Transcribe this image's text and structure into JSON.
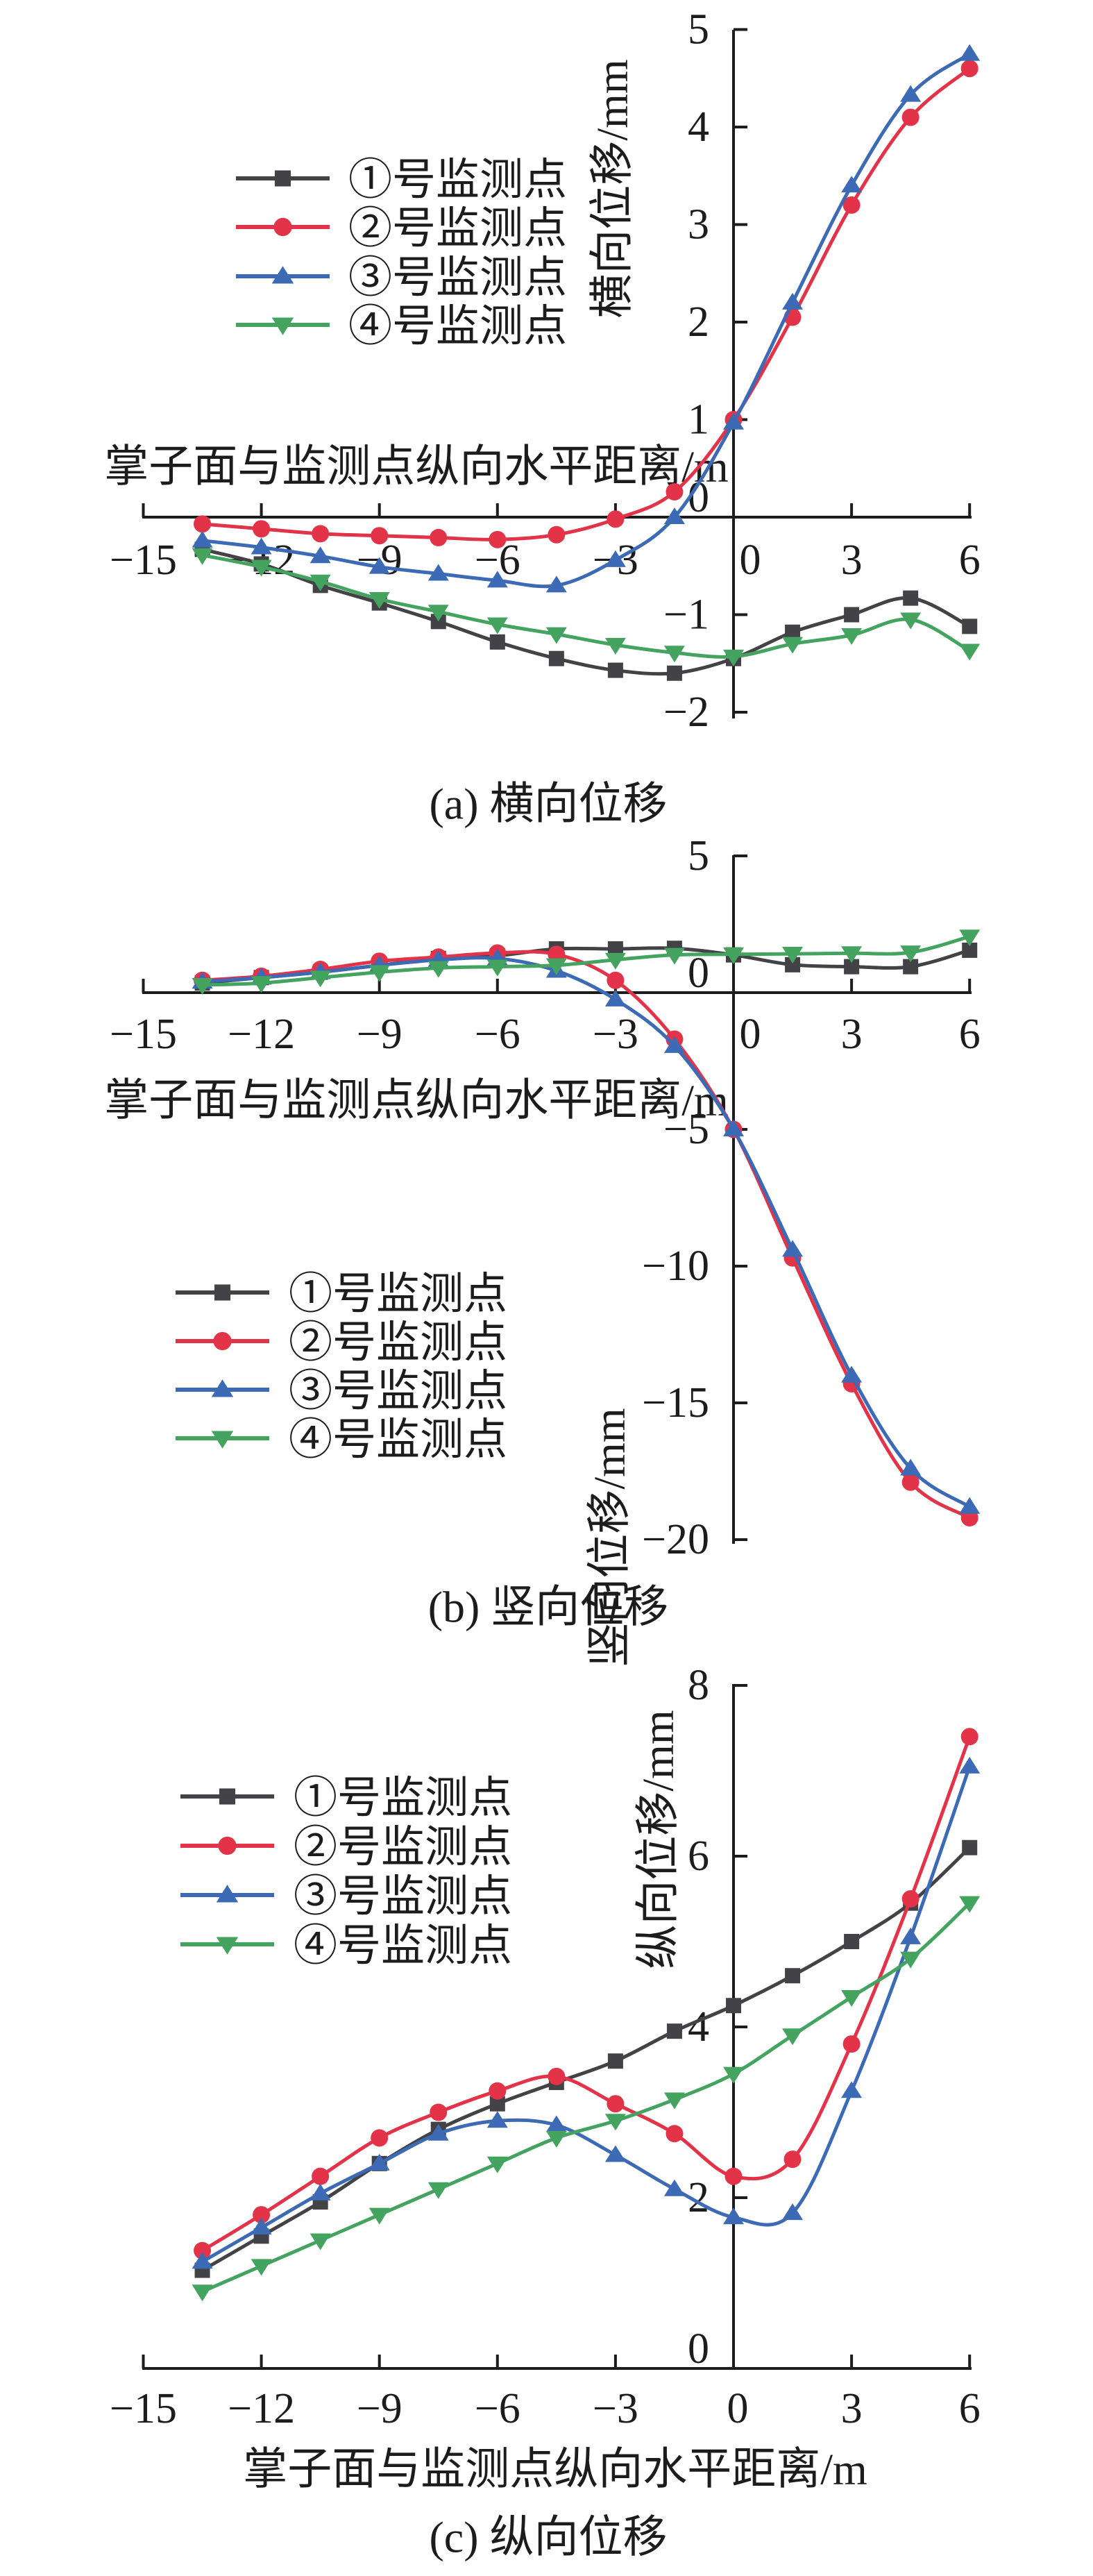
{
  "figure": {
    "background": "#ffffff",
    "x_axis_title": "掌子面与监测点纵向水平距离/m",
    "legend_labels": [
      "①号监测点",
      "②号监测点",
      "③号监测点",
      "④号监测点"
    ],
    "series_colors": {
      "p1": "#434347",
      "p2": "#e23348",
      "p3": "#3c6ab5",
      "p4": "#43a35f"
    }
  },
  "chart_data": [
    {
      "type": "line",
      "caption": "(a) 横向位移",
      "ylabel": "横向位移/mm",
      "xlabel": "掌子面与监测点纵向水平距离/m",
      "xlim": [
        -15,
        6
      ],
      "ylim": [
        -2,
        5
      ],
      "grid": false,
      "legend_position": "top-left",
      "x": [
        -13.5,
        -12,
        -10.5,
        -9,
        -7.5,
        -6,
        -4.5,
        -3,
        -1.5,
        0,
        1.5,
        3,
        4.5,
        6
      ],
      "xticks": [
        -15,
        -12,
        -9,
        -6,
        -3,
        0,
        3,
        6
      ],
      "xtick_labels": [
        "−15",
        "−12",
        "−9",
        "−6",
        "−3",
        "0",
        "3",
        "6"
      ],
      "yticks": [
        5,
        4,
        3,
        2,
        1,
        0,
        -1,
        -2
      ],
      "ytick_labels": [
        "5",
        "4",
        "3",
        "2",
        "1",
        "0",
        "−1",
        "−2"
      ],
      "series": [
        {
          "name": "①号监测点",
          "marker": "square",
          "color": "#434347",
          "values": [
            -0.33,
            -0.48,
            -0.7,
            -0.88,
            -1.07,
            -1.28,
            -1.45,
            -1.57,
            -1.6,
            -1.45,
            -1.18,
            -1.0,
            -0.83,
            -1.12
          ]
        },
        {
          "name": "②号监测点",
          "marker": "circle",
          "color": "#e23348",
          "values": [
            -0.07,
            -0.12,
            -0.17,
            -0.19,
            -0.21,
            -0.23,
            -0.18,
            -0.02,
            0.26,
            1.0,
            2.05,
            3.2,
            4.1,
            4.6
          ]
        },
        {
          "name": "③号监测点",
          "marker": "triangle-up",
          "color": "#3c6ab5",
          "values": [
            -0.24,
            -0.31,
            -0.4,
            -0.51,
            -0.58,
            -0.65,
            -0.7,
            -0.44,
            0.0,
            0.97,
            2.2,
            3.4,
            4.33,
            4.75
          ]
        },
        {
          "name": "④号监测点",
          "marker": "triangle-down",
          "color": "#43a35f",
          "values": [
            -0.39,
            -0.51,
            -0.66,
            -0.84,
            -0.97,
            -1.1,
            -1.2,
            -1.31,
            -1.39,
            -1.43,
            -1.3,
            -1.21,
            -1.05,
            -1.37
          ]
        }
      ]
    },
    {
      "type": "line",
      "caption": "(b) 竖向位移",
      "ylabel": "竖向位移/mm",
      "xlabel": "掌子面与监测点纵向水平距离/m",
      "xlim": [
        -15,
        6
      ],
      "ylim": [
        -20,
        5
      ],
      "grid": false,
      "legend_position": "middle-left",
      "x": [
        -13.5,
        -12,
        -10.5,
        -9,
        -7.5,
        -6,
        -4.5,
        -3,
        -1.5,
        0,
        1.5,
        3,
        4.5,
        6
      ],
      "xticks": [
        -15,
        -12,
        -9,
        -6,
        -3,
        0,
        3,
        6
      ],
      "xtick_labels": [
        "−15",
        "−12",
        "−9",
        "−6",
        "−3",
        "0",
        "3",
        "6"
      ],
      "yticks": [
        5,
        0,
        -5,
        -10,
        -15,
        -20
      ],
      "ytick_labels": [
        "5",
        "0",
        "−5",
        "−10",
        "−15",
        "−20"
      ],
      "series": [
        {
          "name": "①号监测点",
          "marker": "square",
          "color": "#434347",
          "values": [
            0.35,
            0.55,
            0.75,
            1.0,
            1.25,
            1.35,
            1.6,
            1.6,
            1.62,
            1.38,
            1.02,
            0.95,
            0.95,
            1.55
          ]
        },
        {
          "name": "②号监测点",
          "marker": "circle",
          "color": "#e23348",
          "values": [
            0.45,
            0.6,
            0.85,
            1.15,
            1.3,
            1.45,
            1.4,
            0.45,
            -1.7,
            -5.0,
            -9.7,
            -14.3,
            -17.9,
            -19.2
          ]
        },
        {
          "name": "③号监测点",
          "marker": "triangle-up",
          "color": "#3c6ab5",
          "values": [
            0.4,
            0.55,
            0.75,
            1.0,
            1.2,
            1.25,
            0.8,
            -0.25,
            -1.95,
            -5.0,
            -9.4,
            -14.0,
            -17.4,
            -18.8
          ]
        },
        {
          "name": "④号监测点",
          "marker": "triangle-down",
          "color": "#43a35f",
          "values": [
            0.28,
            0.35,
            0.55,
            0.75,
            0.9,
            0.95,
            1.0,
            1.2,
            1.38,
            1.4,
            1.42,
            1.44,
            1.47,
            2.05
          ]
        }
      ]
    },
    {
      "type": "line",
      "caption": "(c) 纵向位移",
      "ylabel": "纵向位移/mm",
      "xlabel": "掌子面与监测点纵向水平距离/m",
      "xlim": [
        -15,
        6
      ],
      "ylim": [
        0,
        8
      ],
      "grid": false,
      "legend_position": "top-left",
      "x": [
        -13.5,
        -12,
        -10.5,
        -9,
        -7.5,
        -6,
        -4.5,
        -3,
        -1.5,
        0,
        1.5,
        3,
        4.5,
        6
      ],
      "xticks": [
        -15,
        -12,
        -9,
        -6,
        -3,
        0,
        3,
        6
      ],
      "xtick_labels": [
        "−15",
        "−12",
        "−9",
        "−6",
        "−3",
        "0",
        "3",
        "6"
      ],
      "yticks": [
        8,
        6,
        4,
        2,
        0
      ],
      "ytick_labels": [
        "8",
        "6",
        "4",
        "2",
        "0"
      ],
      "series": [
        {
          "name": "①号监测点",
          "marker": "square",
          "color": "#434347",
          "values": [
            1.15,
            1.55,
            1.95,
            2.4,
            2.8,
            3.1,
            3.35,
            3.6,
            3.95,
            4.25,
            4.6,
            5.0,
            5.45,
            6.1
          ]
        },
        {
          "name": "②号监测点",
          "marker": "circle",
          "color": "#e23348",
          "values": [
            1.38,
            1.8,
            2.25,
            2.7,
            3.0,
            3.25,
            3.42,
            3.1,
            2.75,
            2.25,
            2.45,
            3.8,
            5.5,
            7.4
          ]
        },
        {
          "name": "③号监测点",
          "marker": "triangle-up",
          "color": "#3c6ab5",
          "values": [
            1.25,
            1.65,
            2.05,
            2.4,
            2.75,
            2.9,
            2.85,
            2.5,
            2.1,
            1.77,
            1.82,
            3.25,
            5.05,
            7.05
          ]
        },
        {
          "name": "④号监测点",
          "marker": "triangle-down",
          "color": "#43a35f",
          "values": [
            0.9,
            1.2,
            1.5,
            1.8,
            2.1,
            2.4,
            2.7,
            2.9,
            3.15,
            3.45,
            3.9,
            4.35,
            4.8,
            5.45
          ]
        }
      ]
    }
  ]
}
